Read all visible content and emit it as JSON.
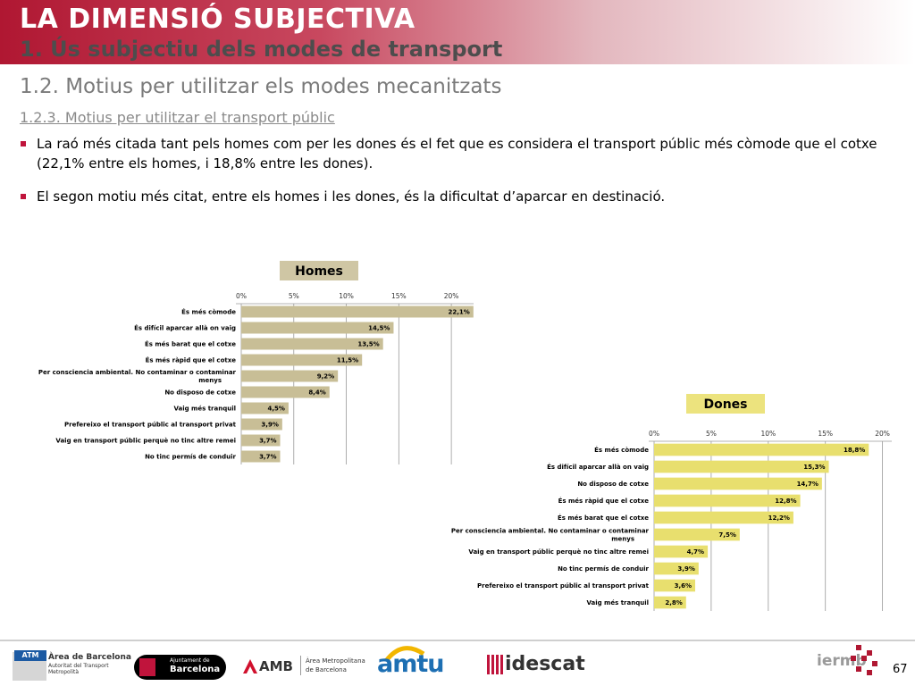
{
  "header": {
    "title": "LA DIMENSIÓ SUBJECTIVA",
    "subtitle": "1. Ús subjectiu dels modes de transport",
    "section": "1.2. Motius per utilitzar els modes mecanitzats",
    "subsection": "1.2.3. Motius per utilitzar el transport públic"
  },
  "bullets": [
    "La raó més citada tant pels homes com per les dones és el fet que es considera el transport públic més còmode que el cotxe (22,1% entre els homes, i 18,8% entre les dones).",
    "El segon motiu més citat, entre els homes i les dones, és la dificultat d’aparcar en destinació."
  ],
  "chart_data": [
    {
      "type": "bar",
      "orientation": "horizontal",
      "title": "Homes",
      "categories": [
        "És més còmode",
        "És difícil aparcar allà on vaig",
        "És més barat que el cotxe",
        "És més ràpid que el cotxe",
        "Per consciencia ambiental. No contaminar o contaminar menys",
        "No disposo de cotxe",
        "Vaig més tranquil",
        "Prefereixo el transport públic al transport privat",
        "Vaig en transport públic perquè no tinc altre remei",
        "No tinc permís de conduir"
      ],
      "values": [
        22.1,
        14.5,
        13.5,
        11.5,
        9.2,
        8.4,
        4.5,
        3.9,
        3.7,
        3.7
      ],
      "value_labels": [
        "22,1%",
        "14,5%",
        "13,5%",
        "11,5%",
        "9,2%",
        "8,4%",
        "4,5%",
        "3,9%",
        "3,7%",
        "3,7%"
      ],
      "ticks": [
        0,
        5,
        10,
        15,
        20
      ],
      "tick_labels": [
        "0%",
        "5%",
        "10%",
        "15%",
        "20%"
      ],
      "xlim": [
        0,
        22.5
      ],
      "grid": true,
      "bar_color": "#c8be96",
      "title_bg": "#cfc6a4"
    },
    {
      "type": "bar",
      "orientation": "horizontal",
      "title": "Dones",
      "categories": [
        "És més còmode",
        "És difícil aparcar allà on vaig",
        "No disposo de cotxe",
        "És més ràpid que el cotxe",
        "És més barat que el cotxe",
        "Per consciencia ambiental. No contaminar o contaminar menys",
        "Vaig en transport públic perquè no tinc altre remei",
        "No tinc permís de conduir",
        "Prefereixo el transport públic al transport privat",
        "Vaig més tranquil"
      ],
      "values": [
        18.8,
        15.3,
        14.7,
        12.8,
        12.2,
        7.5,
        4.7,
        3.9,
        3.6,
        2.8
      ],
      "value_labels": [
        "18,8%",
        "15,3%",
        "14,7%",
        "12,8%",
        "12,2%",
        "7,5%",
        "4,7%",
        "3,9%",
        "3,6%",
        "2,8%"
      ],
      "ticks": [
        0,
        5,
        10,
        15,
        20
      ],
      "tick_labels": [
        "0%",
        "5%",
        "10%",
        "15%",
        "20%"
      ],
      "xlim": [
        0,
        20.5
      ],
      "grid": true,
      "bar_color": "#e8df6e",
      "title_bg": "#ece37e"
    }
  ],
  "footer": {
    "page_number": "67",
    "logos": {
      "atm": {
        "mark": "ATM",
        "line1": "Àrea de Barcelona",
        "line2": "Autoritat del Transport",
        "line3": "Metropolità"
      },
      "ajuntament": {
        "line1": "Ajuntament de",
        "line2": "Barcelona"
      },
      "amb": {
        "mark": "AMB",
        "line1": "Àrea Metropolitana",
        "line2": "de Barcelona"
      },
      "amtu": {
        "mark": "amtu"
      },
      "idescat": {
        "mark": "idescat"
      },
      "iermb": {
        "mark": "iermb"
      }
    }
  },
  "colors": {
    "accent": "#b01732",
    "bullet": "#c0143c",
    "homes_bar": "#c8be96",
    "dones_bar": "#e8df6e"
  }
}
